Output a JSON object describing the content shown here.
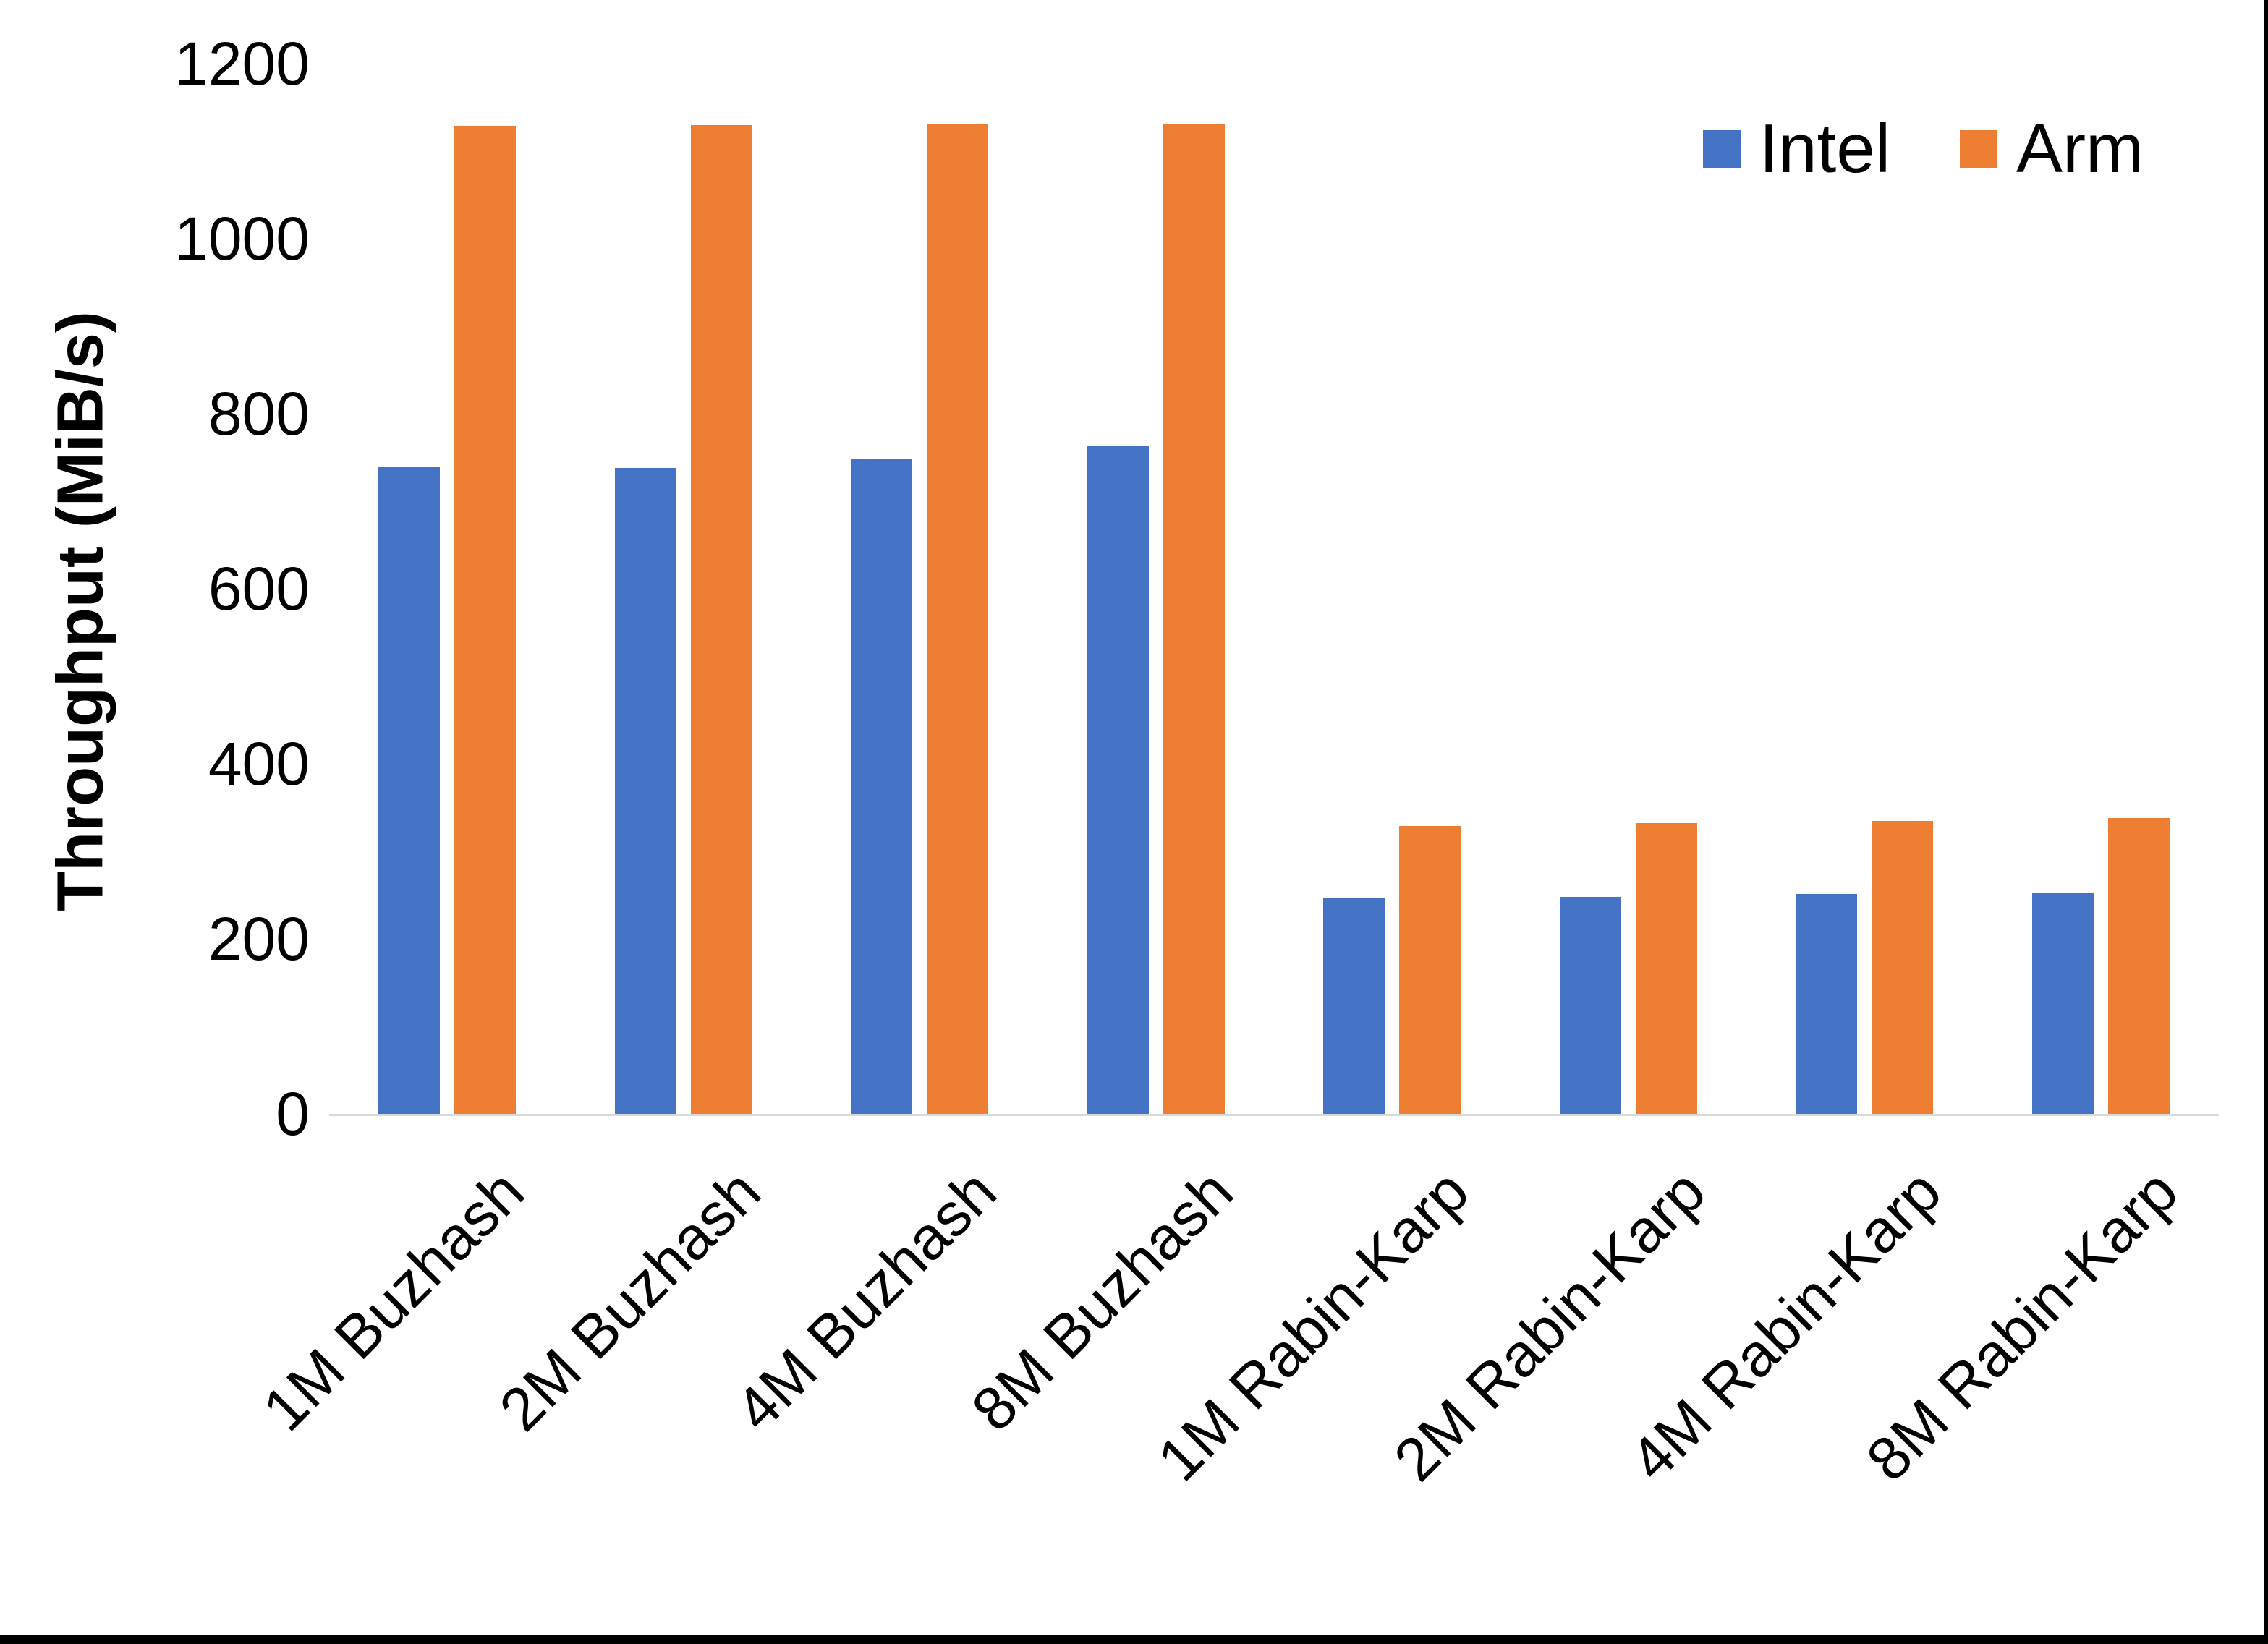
{
  "chart_data": {
    "type": "bar",
    "title": "",
    "xlabel": "",
    "ylabel": "Throughput (MiB/s)",
    "ylim": [
      0,
      1200
    ],
    "yticks": [
      0,
      200,
      400,
      600,
      800,
      1000,
      1200
    ],
    "grid": false,
    "legend_position": "top-right",
    "axis_line_color": "#d9d9d9",
    "categories": [
      "1M Buzhash",
      "2M Buzhash",
      "4M Buzhash",
      "8M Buzhash",
      "1M Rabin-Karp",
      "2M Rabin-Karp",
      "4M Rabin-Karp",
      "8M Rabin-Karp"
    ],
    "series": [
      {
        "name": "Intel",
        "color": "#4472c4",
        "values": [
          740,
          738,
          749,
          764,
          247,
          248,
          251,
          252
        ]
      },
      {
        "name": "Arm",
        "color": "#ed7d31",
        "values": [
          1129,
          1130,
          1131,
          1131,
          329,
          332,
          335,
          338
        ]
      }
    ]
  }
}
